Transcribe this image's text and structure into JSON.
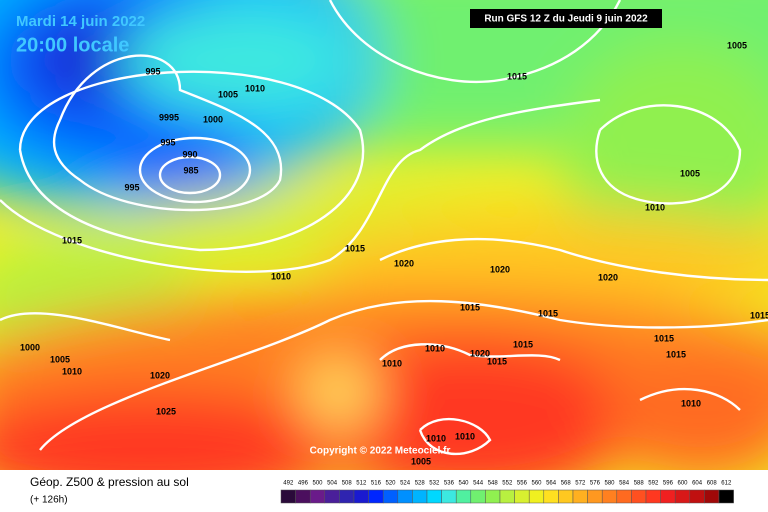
{
  "header": {
    "date": "Mardi 14 juin 2022",
    "time": "20:00 locale",
    "run": "Run GFS 12 Z du Jeudi 9 juin 2022"
  },
  "copyright": "Copyright © 2022 Meteociel.fr",
  "isobar_labels": [
    995,
    1005,
    1010,
    9995,
    1000,
    995,
    990,
    985,
    995,
    1015,
    1010,
    1015,
    1020,
    1020,
    1020,
    1015,
    1005,
    1005,
    1010,
    1015,
    1015,
    1015,
    1015,
    1015,
    1010,
    1020,
    1015,
    1010,
    1000,
    1005,
    1010,
    1020,
    1025,
    1010,
    1010,
    1010,
    1005,
    1015
  ],
  "legend": {
    "title": "Géop. Z500 & pression au sol",
    "subtitle": "(+ 126h)",
    "ticks": [
      492,
      496,
      500,
      504,
      508,
      512,
      516,
      520,
      524,
      528,
      532,
      536,
      540,
      544,
      548,
      552,
      556,
      560,
      564,
      568,
      572,
      576,
      580,
      584,
      588,
      592,
      596,
      600,
      604,
      608,
      612
    ]
  }
}
